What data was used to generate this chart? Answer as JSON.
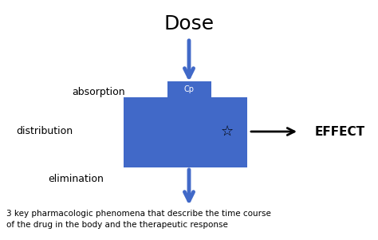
{
  "bg_color": "#ffffff",
  "blue_color": "#4169C8",
  "black_color": "#000000",
  "dose_text": "Dose",
  "dose_fontsize": 18,
  "dose_fontweight": "normal",
  "absorption_text": "absorption",
  "absorption_fontsize": 9,
  "distribution_text": "distribution",
  "distribution_fontsize": 9,
  "elimination_text": "elimination",
  "elimination_fontsize": 9,
  "effect_text": "EFFECT",
  "effect_fontsize": 11,
  "effect_fontweight": "bold",
  "cp_text": "Cp",
  "cp_fontsize": 7,
  "caption_text": "3 key pharmacologic phenomena that describe the time course\nof the drug in the body and the therapeutic response",
  "caption_fontsize": 7.5,
  "star_char": "☆",
  "star_fontsize": 13
}
